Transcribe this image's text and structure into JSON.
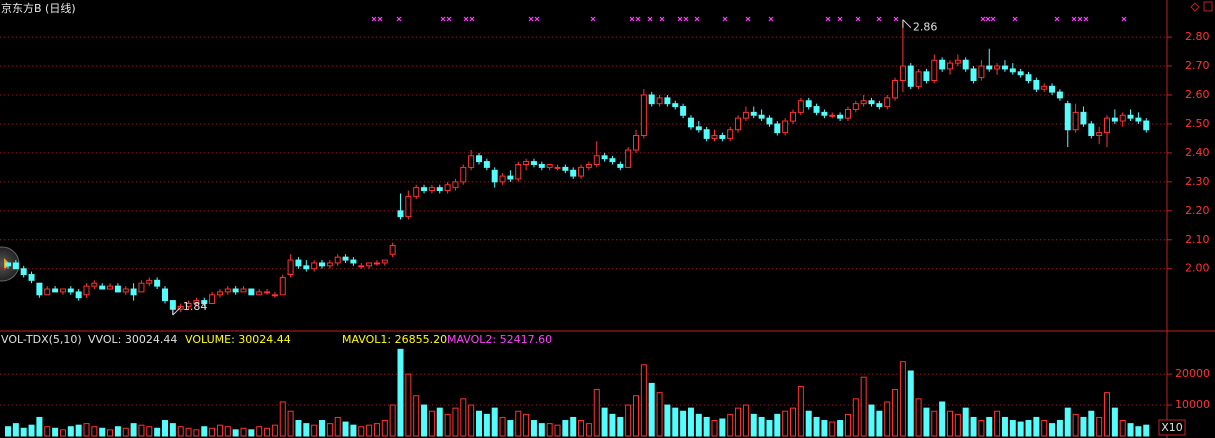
{
  "chart_data": {
    "type": "candlestick",
    "title": "京东方B (日线)",
    "ylim": [
      1.785,
      2.928
    ],
    "yticks": [
      {
        "value": 2.0,
        "label": "2.00"
      },
      {
        "value": 2.1,
        "label": "2.10"
      },
      {
        "value": 2.2,
        "label": "2.20"
      },
      {
        "value": 2.3,
        "label": "2.30"
      },
      {
        "value": 2.4,
        "label": "2.40"
      },
      {
        "value": 2.5,
        "label": "2.50"
      },
      {
        "value": 2.6,
        "label": "2.60"
      },
      {
        "value": 2.7,
        "label": "2.70"
      },
      {
        "value": 2.8,
        "label": "2.80"
      }
    ],
    "grid": true,
    "up_color": "#ff3232",
    "down_color": "#54fcfc",
    "annotations": [
      {
        "label": "2.86",
        "value": 2.86,
        "kind": "high"
      },
      {
        "label": "1.84",
        "value": 1.84,
        "kind": "low"
      }
    ],
    "ohlc": [
      [
        2.02,
        2.02,
        2.0,
        2.01
      ],
      [
        2.02,
        2.03,
        2.0,
        2.0
      ],
      [
        2.0,
        2.01,
        1.97,
        1.98
      ],
      [
        1.98,
        1.99,
        1.95,
        1.96
      ],
      [
        1.95,
        1.95,
        1.9,
        1.91
      ],
      [
        1.91,
        1.94,
        1.91,
        1.93
      ],
      [
        1.93,
        1.94,
        1.92,
        1.92
      ],
      [
        1.92,
        1.93,
        1.91,
        1.93
      ],
      [
        1.93,
        1.94,
        1.91,
        1.92
      ],
      [
        1.92,
        1.93,
        1.89,
        1.9
      ],
      [
        1.91,
        1.95,
        1.9,
        1.94
      ],
      [
        1.94,
        1.96,
        1.93,
        1.95
      ],
      [
        1.94,
        1.95,
        1.93,
        1.93
      ],
      [
        1.93,
        1.95,
        1.93,
        1.94
      ],
      [
        1.94,
        1.95,
        1.92,
        1.92
      ],
      [
        1.92,
        1.94,
        1.91,
        1.93
      ],
      [
        1.93,
        1.95,
        1.89,
        1.91
      ],
      [
        1.92,
        1.96,
        1.92,
        1.95
      ],
      [
        1.95,
        1.97,
        1.94,
        1.96
      ],
      [
        1.96,
        1.97,
        1.93,
        1.94
      ],
      [
        1.93,
        1.94,
        1.88,
        1.89
      ],
      [
        1.89,
        1.89,
        1.84,
        1.86
      ],
      [
        1.86,
        1.88,
        1.85,
        1.87
      ],
      [
        1.87,
        1.89,
        1.86,
        1.88
      ],
      [
        1.88,
        1.9,
        1.87,
        1.89
      ],
      [
        1.89,
        1.9,
        1.87,
        1.88
      ],
      [
        1.88,
        1.92,
        1.88,
        1.91
      ],
      [
        1.91,
        1.93,
        1.9,
        1.92
      ],
      [
        1.92,
        1.94,
        1.91,
        1.93
      ],
      [
        1.93,
        1.94,
        1.91,
        1.92
      ],
      [
        1.92,
        1.94,
        1.92,
        1.93
      ],
      [
        1.93,
        1.93,
        1.91,
        1.91
      ],
      [
        1.91,
        1.93,
        1.91,
        1.92
      ],
      [
        1.92,
        1.93,
        1.91,
        1.92
      ],
      [
        1.91,
        1.92,
        1.9,
        1.91
      ],
      [
        1.91,
        1.98,
        1.91,
        1.97
      ],
      [
        1.98,
        2.05,
        1.97,
        2.03
      ],
      [
        2.03,
        2.04,
        2.0,
        2.01
      ],
      [
        2.01,
        2.03,
        1.99,
        2.0
      ],
      [
        2.0,
        2.03,
        1.99,
        2.02
      ],
      [
        2.02,
        2.03,
        2.0,
        2.01
      ],
      [
        2.01,
        2.03,
        2.0,
        2.02
      ],
      [
        2.02,
        2.05,
        2.01,
        2.04
      ],
      [
        2.04,
        2.05,
        2.02,
        2.03
      ],
      [
        2.03,
        2.04,
        2.01,
        2.02
      ],
      [
        2.01,
        2.02,
        2.0,
        2.01
      ],
      [
        2.01,
        2.02,
        2.0,
        2.02
      ],
      [
        2.02,
        2.03,
        2.01,
        2.02
      ],
      [
        2.02,
        2.03,
        2.01,
        2.03
      ],
      [
        2.05,
        2.09,
        2.04,
        2.08
      ],
      [
        2.2,
        2.26,
        2.17,
        2.18
      ],
      [
        2.18,
        2.27,
        2.17,
        2.25
      ],
      [
        2.25,
        2.29,
        2.24,
        2.28
      ],
      [
        2.28,
        2.29,
        2.26,
        2.27
      ],
      [
        2.27,
        2.29,
        2.26,
        2.28
      ],
      [
        2.28,
        2.29,
        2.26,
        2.27
      ],
      [
        2.27,
        2.3,
        2.26,
        2.29
      ],
      [
        2.28,
        2.31,
        2.27,
        2.3
      ],
      [
        2.3,
        2.36,
        2.29,
        2.35
      ],
      [
        2.35,
        2.41,
        2.34,
        2.39
      ],
      [
        2.39,
        2.4,
        2.36,
        2.37
      ],
      [
        2.37,
        2.38,
        2.34,
        2.35
      ],
      [
        2.34,
        2.35,
        2.28,
        2.3
      ],
      [
        2.3,
        2.33,
        2.29,
        2.32
      ],
      [
        2.32,
        2.34,
        2.3,
        2.31
      ],
      [
        2.31,
        2.37,
        2.3,
        2.36
      ],
      [
        2.36,
        2.38,
        2.34,
        2.37
      ],
      [
        2.37,
        2.38,
        2.35,
        2.36
      ],
      [
        2.36,
        2.37,
        2.34,
        2.35
      ],
      [
        2.35,
        2.36,
        2.34,
        2.36
      ],
      [
        2.35,
        2.36,
        2.34,
        2.35
      ],
      [
        2.35,
        2.36,
        2.33,
        2.34
      ],
      [
        2.34,
        2.35,
        2.31,
        2.32
      ],
      [
        2.32,
        2.36,
        2.31,
        2.35
      ],
      [
        2.35,
        2.37,
        2.34,
        2.36
      ],
      [
        2.36,
        2.44,
        2.35,
        2.39
      ],
      [
        2.39,
        2.4,
        2.37,
        2.38
      ],
      [
        2.38,
        2.39,
        2.36,
        2.37
      ],
      [
        2.36,
        2.37,
        2.34,
        2.35
      ],
      [
        2.35,
        2.42,
        2.35,
        2.41
      ],
      [
        2.41,
        2.48,
        2.4,
        2.46
      ],
      [
        2.46,
        2.62,
        2.45,
        2.6
      ],
      [
        2.6,
        2.61,
        2.56,
        2.57
      ],
      [
        2.57,
        2.6,
        2.56,
        2.59
      ],
      [
        2.59,
        2.6,
        2.56,
        2.57
      ],
      [
        2.57,
        2.58,
        2.55,
        2.56
      ],
      [
        2.56,
        2.57,
        2.52,
        2.53
      ],
      [
        2.52,
        2.53,
        2.48,
        2.49
      ],
      [
        2.49,
        2.51,
        2.47,
        2.48
      ],
      [
        2.48,
        2.49,
        2.44,
        2.45
      ],
      [
        2.45,
        2.48,
        2.44,
        2.46
      ],
      [
        2.46,
        2.47,
        2.44,
        2.45
      ],
      [
        2.45,
        2.49,
        2.44,
        2.48
      ],
      [
        2.48,
        2.53,
        2.47,
        2.52
      ],
      [
        2.52,
        2.56,
        2.51,
        2.54
      ],
      [
        2.54,
        2.56,
        2.52,
        2.53
      ],
      [
        2.53,
        2.55,
        2.51,
        2.52
      ],
      [
        2.52,
        2.53,
        2.49,
        2.5
      ],
      [
        2.5,
        2.51,
        2.46,
        2.47
      ],
      [
        2.47,
        2.52,
        2.46,
        2.51
      ],
      [
        2.51,
        2.55,
        2.5,
        2.54
      ],
      [
        2.54,
        2.59,
        2.53,
        2.58
      ],
      [
        2.58,
        2.59,
        2.55,
        2.56
      ],
      [
        2.56,
        2.57,
        2.53,
        2.54
      ],
      [
        2.54,
        2.55,
        2.52,
        2.53
      ],
      [
        2.53,
        2.54,
        2.52,
        2.53
      ],
      [
        2.53,
        2.54,
        2.51,
        2.52
      ],
      [
        2.52,
        2.56,
        2.51,
        2.55
      ],
      [
        2.55,
        2.58,
        2.54,
        2.57
      ],
      [
        2.57,
        2.6,
        2.56,
        2.58
      ],
      [
        2.58,
        2.59,
        2.56,
        2.57
      ],
      [
        2.57,
        2.58,
        2.55,
        2.56
      ],
      [
        2.56,
        2.6,
        2.55,
        2.59
      ],
      [
        2.59,
        2.66,
        2.58,
        2.65
      ],
      [
        2.65,
        2.86,
        2.61,
        2.7
      ],
      [
        2.7,
        2.71,
        2.62,
        2.63
      ],
      [
        2.63,
        2.69,
        2.62,
        2.68
      ],
      [
        2.68,
        2.69,
        2.64,
        2.65
      ],
      [
        2.65,
        2.74,
        2.64,
        2.72
      ],
      [
        2.72,
        2.73,
        2.68,
        2.69
      ],
      [
        2.69,
        2.72,
        2.67,
        2.71
      ],
      [
        2.71,
        2.74,
        2.7,
        2.72
      ],
      [
        2.72,
        2.73,
        2.68,
        2.69
      ],
      [
        2.69,
        2.7,
        2.64,
        2.65
      ],
      [
        2.66,
        2.72,
        2.65,
        2.7
      ],
      [
        2.7,
        2.76,
        2.68,
        2.69
      ],
      [
        2.69,
        2.71,
        2.67,
        2.7
      ],
      [
        2.7,
        2.72,
        2.68,
        2.69
      ],
      [
        2.69,
        2.71,
        2.67,
        2.68
      ],
      [
        2.68,
        2.69,
        2.66,
        2.67
      ],
      [
        2.67,
        2.68,
        2.64,
        2.65
      ],
      [
        2.65,
        2.66,
        2.61,
        2.62
      ],
      [
        2.62,
        2.64,
        2.61,
        2.63
      ],
      [
        2.63,
        2.64,
        2.6,
        2.61
      ],
      [
        2.61,
        2.62,
        2.58,
        2.59
      ],
      [
        2.57,
        2.58,
        2.42,
        2.48
      ],
      [
        2.48,
        2.57,
        2.47,
        2.54
      ],
      [
        2.54,
        2.56,
        2.49,
        2.5
      ],
      [
        2.5,
        2.51,
        2.45,
        2.46
      ],
      [
        2.46,
        2.49,
        2.43,
        2.47
      ],
      [
        2.47,
        2.53,
        2.42,
        2.52
      ],
      [
        2.52,
        2.55,
        2.5,
        2.51
      ],
      [
        2.51,
        2.54,
        2.49,
        2.53
      ],
      [
        2.53,
        2.55,
        2.51,
        2.52
      ],
      [
        2.52,
        2.54,
        2.5,
        2.51
      ],
      [
        2.51,
        2.52,
        2.47,
        2.48
      ]
    ],
    "volume": {
      "name": "VOL-TDX(5,10)",
      "ylim": [
        0,
        29400
      ],
      "yticks": [
        10000,
        20000
      ],
      "labels": [
        "VVOL: 30024.44",
        "VOLUME: 30024.44",
        "MAVOL1: 26855.20",
        "MAVOL2: 52417.60"
      ],
      "label_colors": [
        "#e0e0e0",
        "#ffff00",
        "#ffff00",
        "#ff40ff"
      ],
      "scale_label": "X10",
      "values": [
        3000,
        4000,
        2500,
        3500,
        6000,
        3000,
        2500,
        2000,
        3000,
        3500,
        4000,
        3000,
        2500,
        2000,
        3000,
        2500,
        4000,
        3500,
        3000,
        2500,
        5000,
        4000,
        3000,
        2500,
        2000,
        3000,
        2500,
        3500,
        3000,
        2000,
        2500,
        2000,
        3000,
        2500,
        3500,
        11000,
        8000,
        5000,
        4000,
        3500,
        5000,
        4000,
        6000,
        4500,
        3500,
        3000,
        3500,
        4000,
        5000,
        10000,
        28000,
        20000,
        13000,
        10000,
        8000,
        9000,
        7000,
        9000,
        12000,
        10000,
        8000,
        7000,
        9000,
        6000,
        5000,
        8000,
        7000,
        5000,
        4000,
        4000,
        3500,
        5000,
        6000,
        5000,
        4000,
        15000,
        9000,
        7000,
        6000,
        10000,
        13000,
        23000,
        17000,
        14000,
        10000,
        9000,
        8000,
        9000,
        7000,
        6000,
        5000,
        5500,
        7000,
        9000,
        10000,
        7000,
        6000,
        5000,
        7000,
        8000,
        9000,
        16000,
        8000,
        6000,
        5000,
        4500,
        5000,
        7000,
        12000,
        19000,
        10000,
        8000,
        11000,
        15000,
        24000,
        21000,
        12000,
        9000,
        8000,
        11000,
        8000,
        7000,
        9000,
        6000,
        5000,
        6000,
        8000,
        6000,
        5000,
        4500,
        5000,
        6000,
        5000,
        4000,
        5000,
        9000,
        7000,
        6000,
        8000,
        6000,
        14000,
        9000,
        5000,
        4000,
        3000,
        3500
      ]
    }
  }
}
